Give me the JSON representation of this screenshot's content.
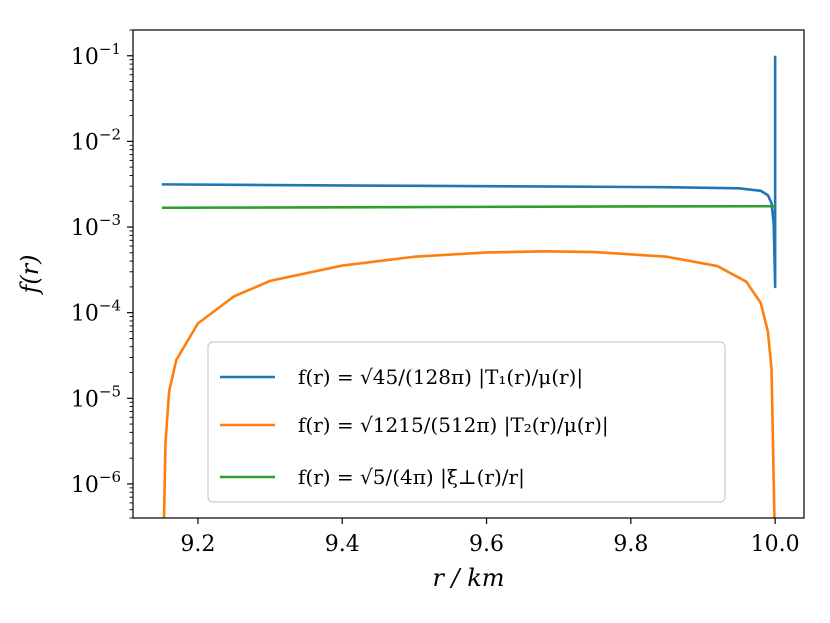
{
  "chart_data": {
    "type": "line",
    "xlabel": "r / km",
    "ylabel": "f(r)",
    "xlim": [
      9.11,
      10.04
    ],
    "ylim": [
      4e-07,
      0.2
    ],
    "yscale": "log",
    "x_ticks": [
      9.2,
      9.4,
      9.6,
      9.8,
      10.0
    ],
    "x_tick_labels": [
      "9.2",
      "9.4",
      "9.6",
      "9.8",
      "10.0"
    ],
    "y_ticks": [
      1e-06,
      1e-05,
      0.0001,
      0.001,
      0.01,
      0.1
    ],
    "y_tick_labels": [
      {
        "base": "10",
        "exp": "−6"
      },
      {
        "base": "10",
        "exp": "−5"
      },
      {
        "base": "10",
        "exp": "−4"
      },
      {
        "base": "10",
        "exp": "−3"
      },
      {
        "base": "10",
        "exp": "−2"
      },
      {
        "base": "10",
        "exp": "−1"
      }
    ],
    "legend_position": "lower-center",
    "series": [
      {
        "name": "f(r) = √45/(128π) |T₁(r)/μ(r)|",
        "color": "#1f77b4",
        "x": [
          9.15,
          9.3,
          9.5,
          9.7,
          9.85,
          9.95,
          9.98,
          9.99,
          9.995,
          9.998,
          10.0,
          10.0
        ],
        "y": [
          0.00315,
          0.00309,
          0.00303,
          0.00297,
          0.00292,
          0.00283,
          0.00265,
          0.00235,
          0.0019,
          0.0011,
          0.0002,
          0.1
        ]
      },
      {
        "name": "f(r) = √1215/(512π) |T₂(r)/μ(r)|",
        "color": "#ff7f0e",
        "x": [
          9.153,
          9.155,
          9.16,
          9.17,
          9.2,
          9.25,
          9.3,
          9.4,
          9.5,
          9.6,
          9.68,
          9.75,
          9.85,
          9.92,
          9.96,
          9.98,
          9.99,
          9.995,
          9.999
        ],
        "y": [
          4e-07,
          3e-06,
          1.2e-05,
          2.8e-05,
          7.5e-05,
          0.000155,
          0.000235,
          0.000355,
          0.00045,
          0.000505,
          0.00052,
          0.00051,
          0.00045,
          0.00035,
          0.00023,
          0.00013,
          6e-05,
          2.2e-05,
          4e-07
        ]
      },
      {
        "name": "f(r) = √5/(4π) |ξ⊥(r)/r|",
        "color": "#2ca02c",
        "x": [
          9.15,
          9.4,
          9.6,
          9.8,
          10.0
        ],
        "y": [
          0.00168,
          0.0017,
          0.00172,
          0.00174,
          0.00175
        ]
      }
    ]
  }
}
